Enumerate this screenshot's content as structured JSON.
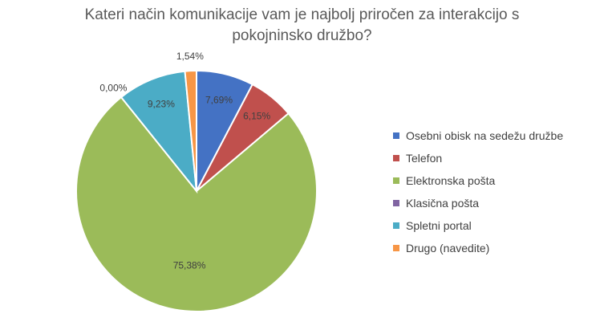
{
  "chart_data": {
    "type": "pie",
    "title_lines": [
      "Kateri način komunikacije vam je najbolj priročen za interakcijo s",
      "pokojninsko družbo?"
    ],
    "legend_position": "right",
    "slices": [
      {
        "name": "Osebni obisk na sedežu družbe",
        "value": 7.69,
        "label": "7,69%",
        "color": "#4472C4"
      },
      {
        "name": "Telefon",
        "value": 6.15,
        "label": "6,15%",
        "color": "#C0504D"
      },
      {
        "name": "Elektronska pošta",
        "value": 75.38,
        "label": "75,38%",
        "color": "#9BBB59"
      },
      {
        "name": "Klasična pošta",
        "value": 0.0,
        "label": "0,00%",
        "color": "#8064A2"
      },
      {
        "name": "Spletni portal",
        "value": 9.23,
        "label": "9,23%",
        "color": "#4BACC6"
      },
      {
        "name": "Drugo (navedite)",
        "value": 1.54,
        "label": "1,54%",
        "color": "#F79646"
      }
    ]
  }
}
